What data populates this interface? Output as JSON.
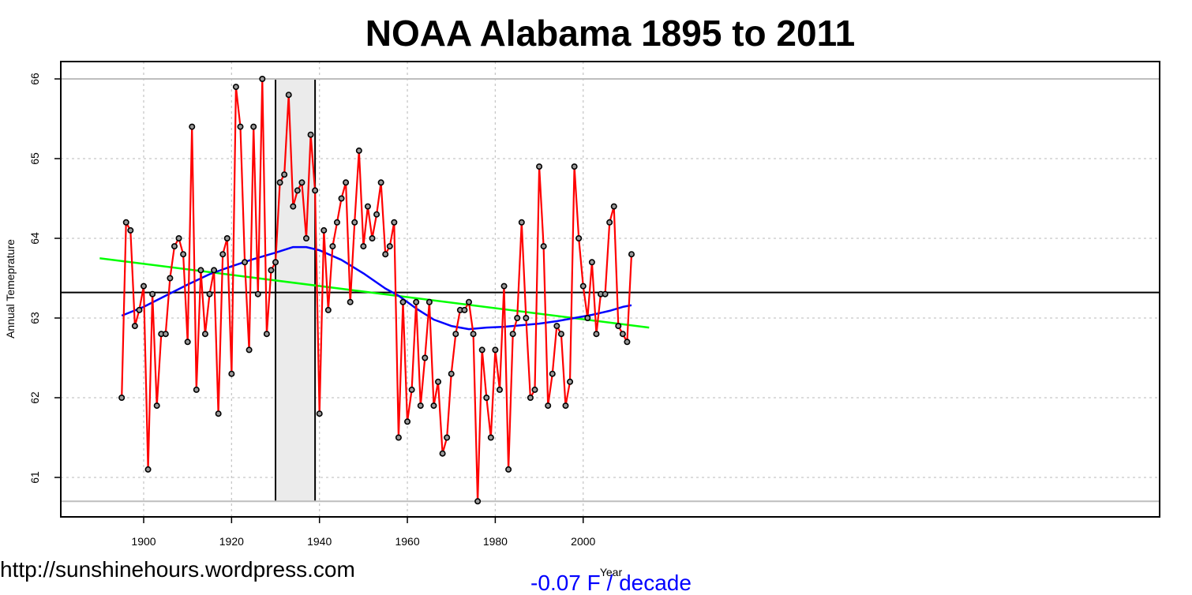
{
  "chart_data": {
    "type": "line",
    "title": "NOAA Alabama 1895 to 2011",
    "xlabel": "Year",
    "ylabel": "Annual Temeprature",
    "xlim": [
      1890,
      2015
    ],
    "ylim": [
      60.5,
      66.2
    ],
    "x_ticks": [
      1900,
      1920,
      1940,
      1960,
      1980,
      2000
    ],
    "y_ticks": [
      61,
      62,
      63,
      64,
      65,
      66
    ],
    "grid": true,
    "series": [
      {
        "color": "#ff0000",
        "marker_color": "#000000",
        "x": [
          1895,
          1896,
          1897,
          1898,
          1899,
          1900,
          1901,
          1902,
          1903,
          1904,
          1905,
          1906,
          1907,
          1908,
          1909,
          1910,
          1911,
          1912,
          1913,
          1914,
          1915,
          1916,
          1917,
          1918,
          1919,
          1920,
          1921,
          1922,
          1923,
          1924,
          1925,
          1926,
          1927,
          1928,
          1929,
          1930,
          1931,
          1932,
          1933,
          1934,
          1935,
          1936,
          1937,
          1938,
          1939,
          1940,
          1941,
          1942,
          1943,
          1944,
          1945,
          1946,
          1947,
          1948,
          1949,
          1950,
          1951,
          1952,
          1953,
          1954,
          1955,
          1956,
          1957,
          1958,
          1959,
          1960,
          1961,
          1962,
          1963,
          1964,
          1965,
          1966,
          1967,
          1968,
          1969,
          1970,
          1971,
          1972,
          1973,
          1974,
          1975,
          1976,
          1977,
          1978,
          1979,
          1980,
          1981,
          1982,
          1983,
          1984,
          1985,
          1986,
          1987,
          1988,
          1989,
          1990,
          1991,
          1992,
          1993,
          1994,
          1995,
          1996,
          1997,
          1998,
          1999,
          2000,
          2001,
          2002,
          2003,
          2004,
          2005,
          2006,
          2007,
          2008,
          2009,
          2010,
          2011
        ],
        "values": [
          62.0,
          64.2,
          64.1,
          62.9,
          63.1,
          63.4,
          61.1,
          63.3,
          61.9,
          62.8,
          62.8,
          63.5,
          63.9,
          64.0,
          63.8,
          62.7,
          65.4,
          62.1,
          63.6,
          62.8,
          63.3,
          63.6,
          61.8,
          63.8,
          64.0,
          62.3,
          65.9,
          65.4,
          63.7,
          62.6,
          65.4,
          63.3,
          66.0,
          62.8,
          63.6,
          63.7,
          64.7,
          64.8,
          65.8,
          64.4,
          64.6,
          64.7,
          64.0,
          65.3,
          64.6,
          61.8,
          64.1,
          63.1,
          63.9,
          64.2,
          64.5,
          64.7,
          63.2,
          64.2,
          65.1,
          63.9,
          64.4,
          64.0,
          64.3,
          64.7,
          63.8,
          63.9,
          64.2,
          61.5,
          63.2,
          61.7,
          62.1,
          63.2,
          61.9,
          62.5,
          63.2,
          61.9,
          62.2,
          61.3,
          61.5,
          62.3,
          62.8,
          63.1,
          63.1,
          63.2,
          62.8,
          60.7,
          62.6,
          62.0,
          61.5,
          62.6,
          62.1,
          63.4,
          61.1,
          62.8,
          63.0,
          64.2,
          63.0,
          62.0,
          62.1,
          64.9,
          63.9,
          61.9,
          62.3,
          62.9,
          62.8,
          61.9,
          62.2,
          64.9,
          64.0,
          63.4,
          63.0,
          63.7,
          62.8,
          63.3,
          63.3,
          64.2,
          64.4,
          62.9,
          62.8,
          62.7,
          63.8
        ]
      },
      {
        "color": "#0000ff",
        "x": [
          1895,
          1900,
          1905,
          1910,
          1915,
          1920,
          1925,
          1930,
          1934,
          1937,
          1940,
          1945,
          1950,
          1955,
          1958,
          1962,
          1966,
          1970,
          1974,
          1978,
          1982,
          1986,
          1990,
          1994,
          1998,
          2002,
          2006,
          2009,
          2011
        ],
        "values": [
          63.03,
          63.14,
          63.28,
          63.42,
          63.55,
          63.65,
          63.74,
          63.82,
          63.89,
          63.89,
          63.85,
          63.73,
          63.56,
          63.37,
          63.28,
          63.12,
          62.98,
          62.9,
          62.86,
          62.88,
          62.89,
          62.91,
          62.93,
          62.96,
          63.0,
          63.04,
          63.09,
          63.14,
          63.16
        ]
      },
      {
        "color": "#00ff00",
        "x": [
          1890,
          2015
        ],
        "values": [
          63.75,
          62.88
        ]
      }
    ],
    "reference_lines": {
      "mean_y": 63.32,
      "max_y": 66.0,
      "min_y": 60.7,
      "colors": {
        "mean": "#000000",
        "extreme": "#bebebe"
      }
    },
    "highlight_band": {
      "x_start": 1930,
      "x_end": 1939,
      "fill": "#ebebeb",
      "border": "#000000"
    },
    "annotations": {
      "url": "http://sunshinehours.wordpress.com",
      "trend": "-0.07 F / decade"
    }
  }
}
